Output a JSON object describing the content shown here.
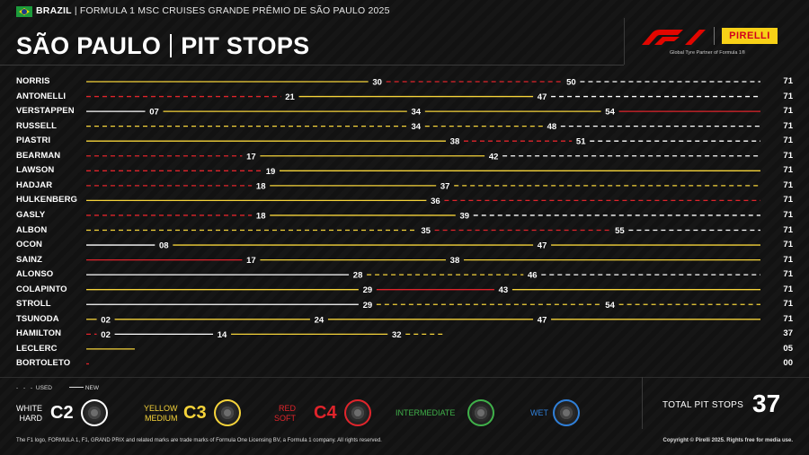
{
  "header": {
    "country": "BRAZIL",
    "event": "FORMULA 1 MSC CRUISES GRANDE PRÊMIO DE SÃO PAULO 2025",
    "title_left": "SÃO PAULO",
    "title_right": "PIT STOPS",
    "f1_logo": "F1",
    "pirelli_logo": "PIRELLI",
    "partner_text": "Global Tyre Partner of Formula 1®"
  },
  "colors": {
    "hard": "#ffffff",
    "medium": "#f5d33a",
    "soft": "#e0242b",
    "intermediate": "#3fb049",
    "wet": "#2f7fd8"
  },
  "chart_data": {
    "type": "stint-timeline",
    "x_range": [
      0,
      71
    ],
    "drivers": [
      {
        "name": "NORRIS",
        "total": "71",
        "stints": [
          {
            "c": "medium",
            "used": false,
            "end": "30"
          },
          {
            "c": "soft",
            "used": true,
            "end": "50"
          },
          {
            "c": "hard",
            "used": true,
            "end": "71"
          }
        ]
      },
      {
        "name": "ANTONELLI",
        "total": "71",
        "stints": [
          {
            "c": "soft",
            "used": true,
            "end": "21"
          },
          {
            "c": "medium",
            "used": false,
            "end": "47"
          },
          {
            "c": "hard",
            "used": true,
            "end": "71"
          }
        ]
      },
      {
        "name": "VERSTAPPEN",
        "total": "71",
        "stints": [
          {
            "c": "hard",
            "used": false,
            "end": "07"
          },
          {
            "c": "medium",
            "used": false,
            "end": "34"
          },
          {
            "c": "medium",
            "used": false,
            "end": "54"
          },
          {
            "c": "soft",
            "used": false,
            "end": "71"
          }
        ]
      },
      {
        "name": "RUSSELL",
        "total": "71",
        "stints": [
          {
            "c": "medium",
            "used": true,
            "end": "34"
          },
          {
            "c": "medium",
            "used": true,
            "end": "48"
          },
          {
            "c": "hard",
            "used": true,
            "end": "71"
          }
        ]
      },
      {
        "name": "PIASTRI",
        "total": "71",
        "stints": [
          {
            "c": "medium",
            "used": false,
            "end": "38"
          },
          {
            "c": "soft",
            "used": true,
            "end": "51"
          },
          {
            "c": "hard",
            "used": true,
            "end": "71"
          }
        ]
      },
      {
        "name": "BEARMAN",
        "total": "71",
        "stints": [
          {
            "c": "soft",
            "used": true,
            "end": "17"
          },
          {
            "c": "medium",
            "used": false,
            "end": "42"
          },
          {
            "c": "hard",
            "used": true,
            "end": "71"
          }
        ]
      },
      {
        "name": "LAWSON",
        "total": "71",
        "stints": [
          {
            "c": "soft",
            "used": true,
            "end": "19"
          },
          {
            "c": "medium",
            "used": false,
            "end": "71"
          }
        ]
      },
      {
        "name": "HADJAR",
        "total": "71",
        "stints": [
          {
            "c": "soft",
            "used": true,
            "end": "18"
          },
          {
            "c": "medium",
            "used": false,
            "end": "37"
          },
          {
            "c": "medium",
            "used": true,
            "end": "71"
          }
        ]
      },
      {
        "name": "HULKENBERG",
        "total": "71",
        "stints": [
          {
            "c": "medium",
            "used": false,
            "end": "36"
          },
          {
            "c": "soft",
            "used": true,
            "end": "71"
          }
        ]
      },
      {
        "name": "GASLY",
        "total": "71",
        "stints": [
          {
            "c": "soft",
            "used": true,
            "end": "18"
          },
          {
            "c": "medium",
            "used": false,
            "end": "39"
          },
          {
            "c": "hard",
            "used": true,
            "end": "71"
          }
        ]
      },
      {
        "name": "ALBON",
        "total": "71",
        "stints": [
          {
            "c": "medium",
            "used": true,
            "end": "35"
          },
          {
            "c": "soft",
            "used": true,
            "end": "55"
          },
          {
            "c": "hard",
            "used": true,
            "end": "71"
          }
        ]
      },
      {
        "name": "OCON",
        "total": "71",
        "stints": [
          {
            "c": "hard",
            "used": false,
            "end": "08"
          },
          {
            "c": "medium",
            "used": false,
            "end": "47"
          },
          {
            "c": "medium",
            "used": false,
            "end": "71"
          }
        ]
      },
      {
        "name": "SAINZ",
        "total": "71",
        "stints": [
          {
            "c": "soft",
            "used": false,
            "end": "17"
          },
          {
            "c": "medium",
            "used": false,
            "end": "38"
          },
          {
            "c": "medium",
            "used": false,
            "end": "71"
          }
        ]
      },
      {
        "name": "ALONSO",
        "total": "71",
        "stints": [
          {
            "c": "hard",
            "used": false,
            "end": "28"
          },
          {
            "c": "medium",
            "used": true,
            "end": "46"
          },
          {
            "c": "hard",
            "used": true,
            "end": "71"
          }
        ]
      },
      {
        "name": "COLAPINTO",
        "total": "71",
        "stints": [
          {
            "c": "medium",
            "used": false,
            "end": "29"
          },
          {
            "c": "soft",
            "used": false,
            "end": "43"
          },
          {
            "c": "medium",
            "used": false,
            "end": "71"
          }
        ]
      },
      {
        "name": "STROLL",
        "total": "71",
        "stints": [
          {
            "c": "hard",
            "used": false,
            "end": "29"
          },
          {
            "c": "medium",
            "used": true,
            "end": "54"
          },
          {
            "c": "medium",
            "used": true,
            "end": "71"
          }
        ]
      },
      {
        "name": "TSUNODA",
        "total": "71",
        "stints": [
          {
            "c": "medium",
            "used": false,
            "end": "02"
          },
          {
            "c": "medium",
            "used": false,
            "end": "24"
          },
          {
            "c": "medium",
            "used": false,
            "end": "47"
          },
          {
            "c": "medium",
            "used": false,
            "end": "71"
          }
        ]
      },
      {
        "name": "HAMILTON",
        "total": "37",
        "stints": [
          {
            "c": "soft",
            "used": true,
            "end": "02"
          },
          {
            "c": "hard",
            "used": false,
            "end": "14"
          },
          {
            "c": "medium",
            "used": false,
            "end": "32"
          },
          {
            "c": "medium",
            "used": true,
            "end": "37"
          }
        ]
      },
      {
        "name": "LECLERC",
        "total": "05",
        "stints": [
          {
            "c": "medium",
            "used": false,
            "end": "05"
          }
        ]
      },
      {
        "name": "BORTOLETO",
        "total": "00",
        "stints": [
          {
            "c": "soft",
            "used": false,
            "end": "00"
          }
        ]
      }
    ]
  },
  "legend": {
    "used": "USED",
    "new": "NEW",
    "tyres": [
      {
        "line1": "WHITE",
        "line2": "HARD",
        "code": "C2",
        "color": "hard"
      },
      {
        "line1": "YELLOW",
        "line2": "MEDIUM",
        "code": "C3",
        "color": "medium"
      },
      {
        "line1": "RED",
        "line2": "SOFT",
        "code": "C4",
        "color": "soft"
      },
      {
        "line1": "",
        "line2": "INTERMEDIATE",
        "code": "",
        "color": "intermediate"
      },
      {
        "line1": "",
        "line2": "WET",
        "code": "",
        "color": "wet"
      }
    ]
  },
  "total": {
    "label": "TOTAL PIT STOPS",
    "value": "37"
  },
  "footer": {
    "left": "The F1 logo, FORMULA 1, F1, GRAND PRIX and related marks are trade marks of Formula One Licensing BV, a Formula 1 company. All rights reserved.",
    "right": "Copyright © Pirelli 2025. Rights free for media use."
  }
}
